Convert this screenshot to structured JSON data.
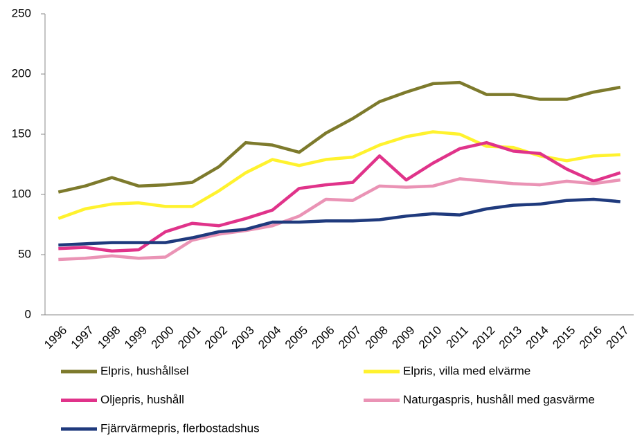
{
  "chart_data": {
    "type": "line",
    "categories": [
      "1996",
      "1997",
      "1998",
      "1999",
      "2000",
      "2001",
      "2002",
      "2003",
      "2004",
      "2005",
      "2006",
      "2007",
      "2008",
      "2009",
      "2010",
      "2011",
      "2012",
      "2013",
      "2014",
      "2015",
      "2016",
      "2017"
    ],
    "series": [
      {
        "name": "Elpris, hushållsel",
        "color": "#7d7a2c",
        "values": [
          102,
          107,
          114,
          107,
          108,
          110,
          123,
          143,
          141,
          135,
          151,
          163,
          177,
          185,
          192,
          193,
          183,
          183,
          179,
          179,
          185,
          189
        ]
      },
      {
        "name": "Elpris, villa med elvärme",
        "color": "#fff22e",
        "values": [
          80,
          88,
          92,
          93,
          90,
          90,
          103,
          118,
          129,
          124,
          129,
          131,
          141,
          148,
          152,
          150,
          140,
          139,
          132,
          128,
          132,
          133
        ]
      },
      {
        "name": "Oljepris, hushåll",
        "color": "#e0338a",
        "values": [
          55,
          56,
          53,
          54,
          69,
          76,
          74,
          80,
          87,
          105,
          108,
          110,
          132,
          112,
          126,
          138,
          143,
          136,
          134,
          121,
          111,
          118
        ]
      },
      {
        "name": "Naturgaspris, hushåll med gasvärme",
        "color": "#ea93b5",
        "values": [
          46,
          47,
          49,
          47,
          48,
          62,
          67,
          70,
          74,
          82,
          96,
          95,
          107,
          106,
          107,
          113,
          111,
          109,
          108,
          111,
          109,
          112
        ]
      },
      {
        "name": "Fjärrvärmepris, flerbostadshus",
        "color": "#1f3a7d",
        "values": [
          58,
          59,
          60,
          60,
          60,
          64,
          69,
          71,
          77,
          77,
          78,
          78,
          79,
          82,
          84,
          83,
          88,
          91,
          92,
          95,
          96,
          94
        ]
      }
    ],
    "ylim": [
      0,
      250
    ],
    "yticks": [
      0,
      50,
      100,
      150,
      200,
      250
    ],
    "grid": false,
    "legend": "bottom"
  }
}
